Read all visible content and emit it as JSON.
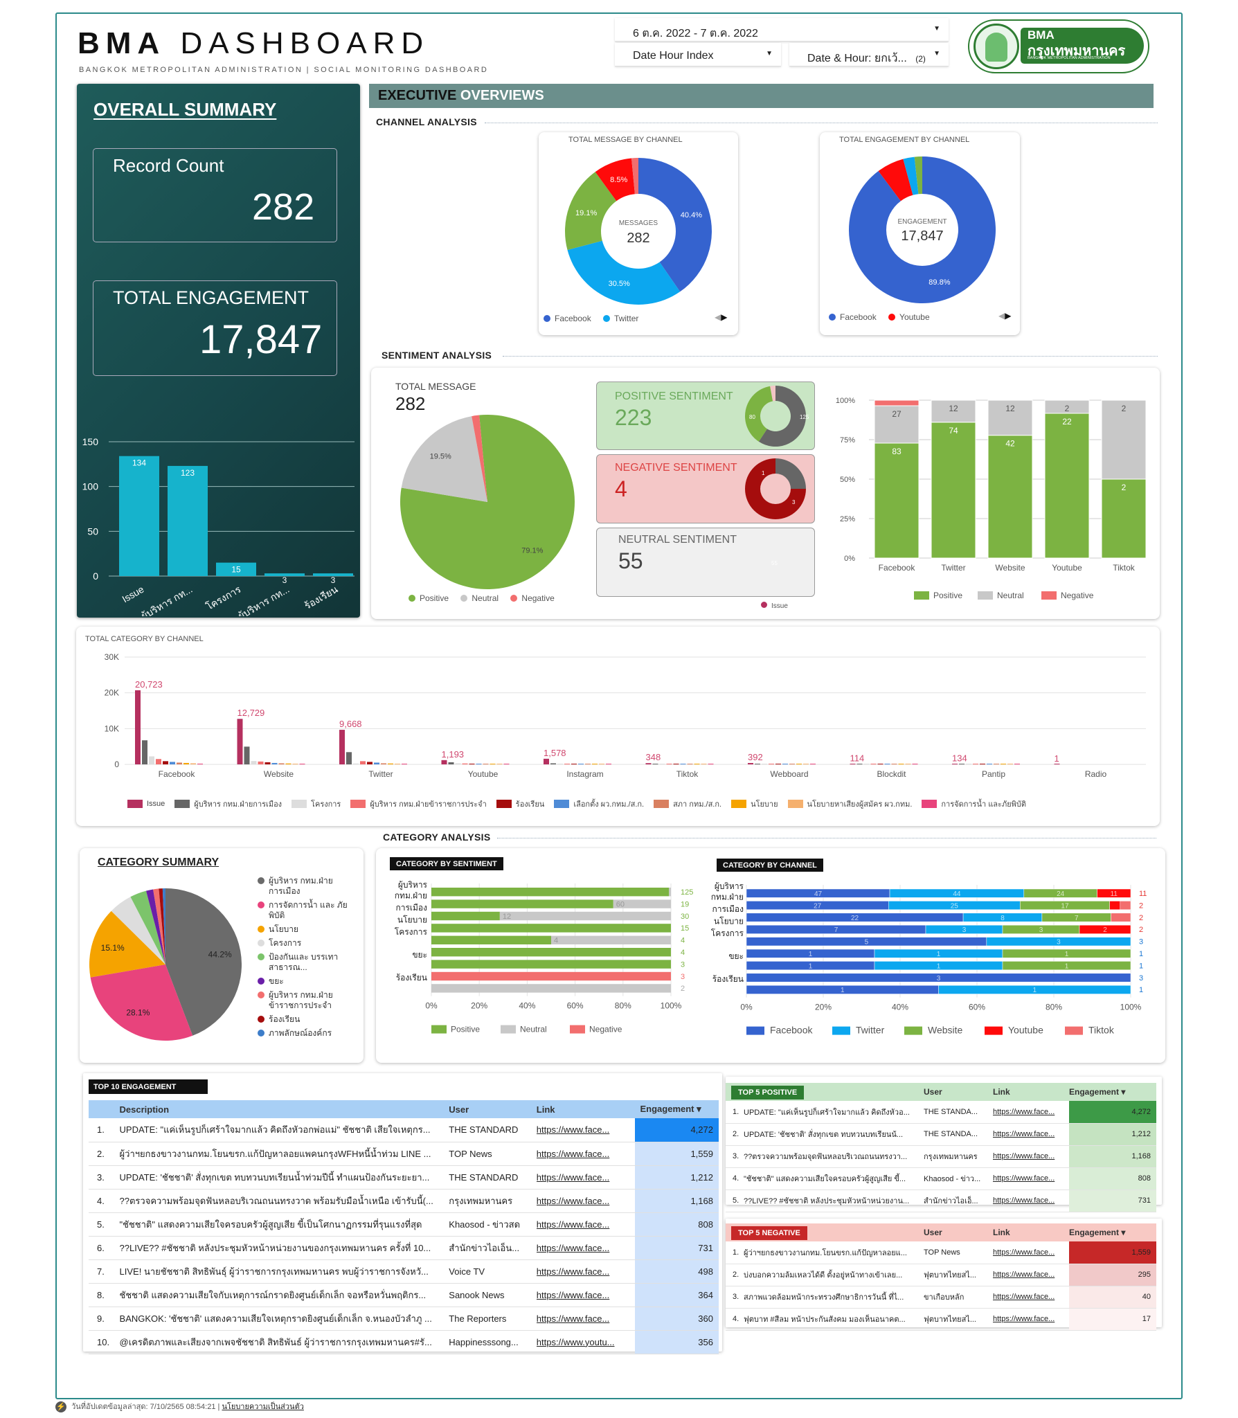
{
  "header": {
    "logo_title": "BMA DASHBOARD",
    "logo_bold": "BMA",
    "logo_light": "DASHBOARD",
    "subtitle": "BANGKOK METROPOLITAN ADMINISTRATION | SOCIAL MONITORING DASHBOARD",
    "date_range": "6 ต.ค. 2022 - 7 ต.ค. 2022",
    "dim1": "Date Hour Index",
    "dim2": "Date & Hour: ยกเว้...",
    "dim2_count": "(2)",
    "brand_short": "BMA",
    "brand_thai": "กรุงเทพมหานคร",
    "brand_en": "BANGKOK METROPOLITAN ADMINISTRATION"
  },
  "overall": {
    "title": "OVERALL SUMMARY",
    "record_label": "Record Count",
    "record_value": "282",
    "engagement_label": "TOTAL ENGAGEMENT",
    "engagement_value": "17,847"
  },
  "overall_chart": {
    "type": "bar",
    "categories": [
      "Issue",
      "ผู้บริหาร กท...",
      "โครงการ",
      "ผู้บริหาร กท...",
      "ร้องเรียน"
    ],
    "values": [
      134,
      123,
      15,
      3,
      3
    ],
    "ylim": [
      0,
      150
    ],
    "yticks": [
      "150",
      "100",
      "50",
      "0"
    ]
  },
  "exec": {
    "title_bold": "EXECUTIVE",
    "title_light": " OVERVIEWS",
    "channel_analysis": "CHANNEL ANALYSIS",
    "sentiment_analysis": "SENTIMENT ANALYSIS",
    "category_analysis": "CATEGORY ANALYSIS"
  },
  "msg_donut": {
    "title": "TOTAL MESSAGE BY CHANNEL",
    "center_label": "MESSAGES",
    "center_value": "282",
    "legend": [
      "Facebook",
      "Twitter"
    ],
    "slices": [
      {
        "name": "Facebook",
        "value": 40.4,
        "label": "40.4%",
        "color": "#3563cf"
      },
      {
        "name": "Twitter",
        "value": 30.5,
        "label": "30.5%",
        "color": "#0ca7ef"
      },
      {
        "name": "Website",
        "value": 19.1,
        "label": "19.1%",
        "color": "#7cb342"
      },
      {
        "name": "Youtube",
        "value": 8.5,
        "label": "8.5%",
        "color": "#ff0a0a"
      },
      {
        "name": "Other",
        "value": 1.5,
        "label": "",
        "color": "#f26e6e"
      }
    ]
  },
  "eng_donut": {
    "title": "TOTAL ENGAGEMENT BY CHANNEL",
    "center_label": "ENGAGEMENT",
    "center_value": "17,847",
    "legend": [
      "Facebook",
      "Youtube"
    ],
    "slices": [
      {
        "name": "Facebook",
        "value": 89.8,
        "label": "89.8%",
        "color": "#3563cf"
      },
      {
        "name": "Youtube",
        "value": 6.0,
        "label": "",
        "color": "#ff0a0a"
      },
      {
        "name": "Twitter",
        "value": 2.5,
        "label": "",
        "color": "#0ca7ef"
      },
      {
        "name": "Website",
        "value": 1.7,
        "label": "",
        "color": "#7cb342"
      }
    ]
  },
  "sentiment": {
    "total_label": "TOTAL MESSAGE",
    "total_value": "282",
    "pie": [
      {
        "name": "Positive",
        "value": 79.1,
        "label": "79.1%",
        "color": "#7cb342"
      },
      {
        "name": "Neutral",
        "value": 19.5,
        "label": "19.5%",
        "color": "#c8c8c8"
      },
      {
        "name": "Negative",
        "value": 1.4,
        "label": "",
        "color": "#f26e6e"
      }
    ],
    "legend": [
      "Positive",
      "Neutral",
      "Negative"
    ],
    "positive_label": "POSITIVE SENTIMENT",
    "positive_value": "223",
    "pos_mini": [
      "80",
      "125"
    ],
    "negative_label": "NEGATIVE SENTIMENT",
    "negative_value": "4",
    "neg_mini": [
      "1",
      "3"
    ],
    "neutral_label": "NEUTRAL SENTIMENT",
    "neutral_value": "55",
    "neu_mini": [
      "55"
    ],
    "neu_legend": "Issue"
  },
  "stacked_channel": {
    "type": "bar",
    "categories": [
      "Facebook",
      "Twitter",
      "Website",
      "Youtube",
      "Tiktok"
    ],
    "yticks": [
      "100%",
      "75%",
      "50%",
      "25%",
      "0%"
    ],
    "series": [
      {
        "name": "Positive",
        "values": [
          83,
          74,
          42,
          22,
          2
        ],
        "color": "#7cb342"
      },
      {
        "name": "Neutral",
        "values": [
          27,
          12,
          12,
          2,
          2
        ],
        "color": "#c8c8c8"
      },
      {
        "name": "Negative",
        "values": [
          4,
          0,
          0,
          0,
          0
        ],
        "color": "#f26e6e"
      }
    ],
    "labels": [
      [
        "83",
        "27",
        ""
      ],
      [
        "74",
        "12",
        ""
      ],
      [
        "42",
        "12",
        ""
      ],
      [
        "22",
        "2",
        ""
      ],
      [
        "2",
        "2",
        ""
      ]
    ]
  },
  "category_by_channel": {
    "title": "TOTAL CATEGORY BY CHANNEL",
    "type": "bar",
    "yticks": [
      "30K",
      "20K",
      "10K",
      "0"
    ],
    "channels": [
      "Facebook",
      "Website",
      "Twitter",
      "Youtube",
      "Instagram",
      "Tiktok",
      "Webboard",
      "Blockdit",
      "Pantip",
      "Radio"
    ],
    "top_labels": [
      "20,723",
      "12,729",
      "9,668",
      "1,193",
      "1,578",
      "348",
      "392",
      "114",
      "134",
      "1"
    ],
    "legend": [
      "Issue",
      "ผู้บริหาร กทม.ฝ่ายการเมือง",
      "โครงการ",
      "ผู้บริหาร กทม.ฝ่ายข้าราชการประจำ",
      "ร้องเรียน",
      "เลือกตั้ง ผว.กทม./ส.ก.",
      "สภา กทม./ส.ก.",
      "นโยบาย",
      "นโยบายหาเสียงผู้สมัคร ผว.กทม.",
      "การจัดการน้ำ และภัยพิบัติ"
    ],
    "colors": [
      "#b5305f",
      "#666666",
      "#dddddd",
      "#f26e6e",
      "#a50d0d",
      "#4f8bd6",
      "#d98060",
      "#f5a300",
      "#f5b06e",
      "#e8437c"
    ],
    "series": [
      [
        20723,
        12729,
        9668,
        1193,
        1578,
        348,
        392,
        114,
        134,
        1
      ],
      [
        6733,
        4965,
        3425,
        600,
        300,
        150,
        100,
        60,
        60,
        0
      ],
      [
        2242,
        938,
        248,
        300,
        200,
        80,
        70,
        40,
        30,
        0
      ],
      [
        1500,
        800,
        900,
        250,
        150,
        60,
        50,
        30,
        20,
        0
      ],
      [
        900,
        600,
        700,
        200,
        120,
        40,
        30,
        20,
        10,
        0
      ],
      [
        700,
        400,
        500,
        150,
        90,
        30,
        20,
        10,
        10,
        0
      ],
      [
        500,
        300,
        300,
        100,
        60,
        20,
        15,
        10,
        5,
        0
      ],
      [
        400,
        250,
        250,
        90,
        50,
        15,
        10,
        5,
        5,
        0
      ],
      [
        300,
        150,
        150,
        60,
        40,
        10,
        10,
        5,
        5,
        0
      ],
      [
        200,
        100,
        100,
        40,
        30,
        10,
        5,
        5,
        5,
        0
      ]
    ]
  },
  "cat_summary": {
    "title": "CATEGORY SUMMARY",
    "slices": [
      {
        "name": "ผู้บริหาร กทม.ฝ่ายการเมือง",
        "value": 44.2,
        "label": "44.2%",
        "color": "#6b6b6b"
      },
      {
        "name": "การจัดการน้ำ และภัยพิบัติ",
        "value": 28.1,
        "label": "28.1%",
        "color": "#e8437c"
      },
      {
        "name": "นโยบาย",
        "value": 15.1,
        "label": "15.1%",
        "color": "#f5a300"
      },
      {
        "name": "โครงการ",
        "value": 5.0,
        "label": "",
        "color": "#dddddd"
      },
      {
        "name": "ป้องกันและบรรเทาสาธารณ...",
        "value": 3.5,
        "label": "",
        "color": "#7cc46b"
      },
      {
        "name": "ขยะ",
        "value": 1.5,
        "label": "",
        "color": "#6a1fa8"
      },
      {
        "name": "ผู้บริหาร กทม.ฝ่ายข้าราชการประจำ",
        "value": 1.2,
        "label": "",
        "color": "#f26e6e"
      },
      {
        "name": "ร้องเรียน",
        "value": 0.8,
        "label": "",
        "color": "#a50d0d"
      },
      {
        "name": "ภาพลักษณ์องค์กร",
        "value": 0.6,
        "label": "",
        "color": "#3d7dc9"
      }
    ],
    "legend": [
      "ผู้บริหาร กทม.ฝ่าย การเมือง",
      "การจัดการน้ำ และ ภัยพิบัติ",
      "นโยบาย",
      "โครงการ",
      "ป้องกันและ บรรเทาสาธารณ...",
      "ขยะ",
      "ผู้บริหาร กทม.ฝ่าย ข้าราชการประจำ",
      "ร้องเรียน",
      "ภาพลักษณ์องค์กร"
    ]
  },
  "cat_sentiment": {
    "title": "CATEGORY BY SENTIMENT",
    "ylabels": [
      "ผู้บริหาร กทม.ฝ่าย การเมือง",
      "นโยบาย",
      "โครงการ",
      "ขยะ",
      "ร้องเรียน"
    ],
    "xticks": [
      "0%",
      "20%",
      "40%",
      "60%",
      "80%",
      "100%"
    ],
    "legend": [
      "Positive",
      "Neutral",
      "Negative"
    ],
    "rows": [
      [
        125,
        1,
        0
      ],
      [
        60,
        19,
        0
      ],
      [
        12,
        30,
        0
      ],
      [
        15,
        0,
        0
      ],
      [
        4,
        4,
        0
      ],
      [
        4,
        0,
        0
      ],
      [
        3,
        0,
        0
      ],
      [
        0,
        0,
        3
      ],
      [
        0,
        2,
        0
      ]
    ],
    "right": [
      "125",
      "19",
      "30",
      "15",
      "4",
      "4",
      "3",
      "3",
      "2"
    ],
    "mid": [
      "",
      "60",
      "12",
      "",
      "4",
      "",
      "",
      "",
      ""
    ]
  },
  "cat_channel": {
    "title": "CATEGORY BY CHANNEL",
    "ylabels": [
      "ผู้บริหาร กทม.ฝ่าย การเมือง",
      "นโยบาย",
      "โครงการ",
      "ขยะ",
      "ร้องเรียน"
    ],
    "xticks": [
      "0%",
      "20%",
      "40%",
      "60%",
      "80%",
      "100%"
    ],
    "legend": [
      "Facebook",
      "Twitter",
      "Website",
      "Youtube",
      "Tiktok"
    ],
    "rows": [
      [
        47,
        44,
        24,
        11,
        0
      ],
      [
        27,
        25,
        17,
        2,
        2
      ],
      [
        22,
        8,
        7,
        0,
        2
      ],
      [
        7,
        3,
        3,
        2,
        0
      ],
      [
        5,
        3,
        0,
        0,
        0
      ],
      [
        1,
        1,
        1,
        0,
        0
      ],
      [
        1,
        1,
        1,
        0,
        0
      ],
      [
        3,
        0,
        0,
        0,
        0
      ],
      [
        1,
        1,
        0,
        0,
        0
      ]
    ],
    "right": [
      "11",
      "2",
      "2",
      "2",
      "3",
      "1",
      "1",
      "3",
      "1"
    ]
  },
  "top10": {
    "title": "TOP 10 ENGAGEMENT",
    "cols": [
      "Description",
      "User",
      "Link",
      "Engagement"
    ],
    "rows": [
      [
        "1.",
        "UPDATE: \"แค่เห็นรูปก็เศร้าใจมากแล้ว คิดถึงหัวอกพ่อแม่\" ชัชชาติ เสียใจเหตุกร...",
        "THE STANDARD",
        "https://www.face...",
        "4,272"
      ],
      [
        "2.",
        "ผู้ว่าฯยกธงขาวงานกทม.โยนขรก.แก้ปัญหาลอยแพคนกรุงWFHหนี้น้ำท่วม LINE ...",
        "TOP News",
        "https://www.face...",
        "1,559"
      ],
      [
        "3.",
        "UPDATE: 'ชัชชาติ' สั่งทุกเขต ทบทวนบทเรียนน้ำท่วมปีนี้ ทำแผนป้องกันระยะยา...",
        "THE STANDARD",
        "https://www.face...",
        "1,212"
      ],
      [
        "4.",
        "??ตรวจความพร้อมจุดฟันหลอบริเวณถนนทรงวาด พร้อมรับมือน้ำเหนือ เข้ารับนี้(...",
        "กรุงเทพมหานคร",
        "https://www.face...",
        "1,168"
      ],
      [
        "5.",
        "\"ชัชชาติ\" แสดงความเสียใจครอบครัวผู้สูญเสีย ขี้เป็นโศกนาฏกรรมที่รุนแรงที่สุด",
        "Khaosod - ข่าวสด",
        "https://www.face...",
        "808"
      ],
      [
        "6.",
        "??LIVE?? #ชัชชาติ หลังประชุมหัวหน้าหน่วยงานของกรุงเทพมหานคร ครั้งที่ 10...",
        "สำนักข่าวไอเอ็น...",
        "https://www.face...",
        "731"
      ],
      [
        "7.",
        "LIVE! นายชัชชาติ สิทธิพันธุ์ ผู้ว่าราชการกรุงเทพมหานคร พบผู้ว่าราชการจังหวั...",
        "Voice TV",
        "https://www.face...",
        "498"
      ],
      [
        "8.",
        "ชัชชาติ แสดงความเสียใจกับเหตุการณ์กราดยิงศูนย์เด็กเล็ก จอหรือหวั่นพฤติกร...",
        "Sanook News",
        "https://www.face...",
        "364"
      ],
      [
        "9.",
        "BANGKOK: 'ชัชชาติ' แสดงความเสียใจเหตุกราดยิงศูนย์เด็กเล็ก จ.หนองบัวลำภู ...",
        "The Reporters",
        "https://www.face...",
        "360"
      ],
      [
        "10.",
        "@เครดิตภาพและเสียงจากเพจชัชชาติ สิทธิพันธ์ ผู้ว่าราชการกรุงเทพมหานคร#รั...",
        "Happinesssong...",
        "https://www.youtu...",
        "356"
      ]
    ],
    "eng_values": [
      4272,
      1559,
      1212,
      1168,
      808,
      731,
      498,
      364,
      360,
      356
    ]
  },
  "top5_pos": {
    "title": "TOP 5 POSITIVE",
    "cols": [
      "User",
      "Link",
      "Engagement"
    ],
    "rows": [
      [
        "1.",
        "UPDATE: \"แค่เห็นรูปก็เศร้าใจมากแล้ว คิดถึงหัวอ...",
        "THE STANDA...",
        "https://www.face...",
        "4,272"
      ],
      [
        "2.",
        "UPDATE: 'ชัชชาติ' สั่งทุกเขต ทบทวนบทเรียนน้...",
        "THE STANDA...",
        "https://www.face...",
        "1,212"
      ],
      [
        "3.",
        "??ตรวจความพร้อมจุดฟันหลอบริเวณถนนทรงวา...",
        "กรุงเทพมหานคร",
        "https://www.face...",
        "1,168"
      ],
      [
        "4.",
        "\"ชัชชาติ\" แสดงความเสียใจครอบครัวผู้สูญเสีย ขี้...",
        "Khaosod - ข่าว...",
        "https://www.face...",
        "808"
      ],
      [
        "5.",
        "??LIVE?? #ชัชชาติ หลังประชุมหัวหน้าหน่วยงาน...",
        "สำนักข่าวไอเอ็...",
        "https://www.face...",
        "731"
      ]
    ],
    "eng_values": [
      4272,
      1212,
      1168,
      808,
      731
    ]
  },
  "top5_neg": {
    "title": "TOP 5 NEGATIVE",
    "cols": [
      "User",
      "Link",
      "Engagement"
    ],
    "rows": [
      [
        "1.",
        "ผู้ว่าฯยกธงขาวงานกทม.โยนขรก.แก้ปัญหาลอยแ...",
        "TOP News",
        "https://www.face...",
        "1,559"
      ],
      [
        "2.",
        "บ่งบอกความล้มเหลวได้ดี ตั้งอยู่หน้าทางเข้าเลย...",
        "ฟุตบาทไทยสไ...",
        "https://www.face...",
        "295"
      ],
      [
        "3.",
        "สภาพแวดล้อมหน้ากระทรวงศึกษาธิการวันนี้ ที่ไ...",
        "ขาเกือบหลัก",
        "https://www.face...",
        "40"
      ],
      [
        "4.",
        "ฟุตบาท #สีลม หน้าประกันสังคม มองเห็นอนาคต...",
        "ฟุตบาทไทยสไ...",
        "https://www.face...",
        "17"
      ]
    ],
    "eng_values": [
      1559,
      295,
      40,
      17
    ]
  },
  "footer": {
    "updated": "วันที่อัปเดตข้อมูลล่าสุด: 7/10/2565 08:54:21",
    "privacy": "นโยบายความเป็นส่วนตัว"
  }
}
